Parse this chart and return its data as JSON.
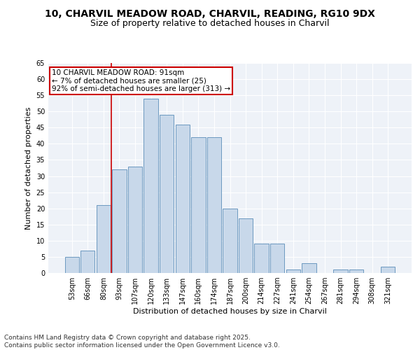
{
  "title_line1": "10, CHARVIL MEADOW ROAD, CHARVIL, READING, RG10 9DX",
  "title_line2": "Size of property relative to detached houses in Charvil",
  "xlabel": "Distribution of detached houses by size in Charvil",
  "ylabel": "Number of detached properties",
  "categories": [
    "53sqm",
    "66sqm",
    "80sqm",
    "93sqm",
    "107sqm",
    "120sqm",
    "133sqm",
    "147sqm",
    "160sqm",
    "174sqm",
    "187sqm",
    "200sqm",
    "214sqm",
    "227sqm",
    "241sqm",
    "254sqm",
    "267sqm",
    "281sqm",
    "294sqm",
    "308sqm",
    "321sqm"
  ],
  "values": [
    5,
    7,
    21,
    32,
    33,
    54,
    49,
    46,
    42,
    42,
    20,
    17,
    9,
    9,
    1,
    3,
    0,
    1,
    1,
    0,
    2
  ],
  "bar_color": "#c8d8ea",
  "bar_edge_color": "#5b8db8",
  "vline_color": "#cc0000",
  "vline_pos": 2.5,
  "annotation_text": "10 CHARVIL MEADOW ROAD: 91sqm\n← 7% of detached houses are smaller (25)\n92% of semi-detached houses are larger (313) →",
  "annotation_box_color": "#ffffff",
  "annotation_box_edge": "#cc0000",
  "footer_text": "Contains HM Land Registry data © Crown copyright and database right 2025.\nContains public sector information licensed under the Open Government Licence v3.0.",
  "ylim": [
    0,
    65
  ],
  "yticks": [
    0,
    5,
    10,
    15,
    20,
    25,
    30,
    35,
    40,
    45,
    50,
    55,
    60,
    65
  ],
  "bg_color": "#eef2f8",
  "grid_color": "#ffffff",
  "title_fontsize": 10,
  "subtitle_fontsize": 9,
  "axis_label_fontsize": 8,
  "tick_fontsize": 7,
  "annotation_fontsize": 7.5,
  "footer_fontsize": 6.5
}
